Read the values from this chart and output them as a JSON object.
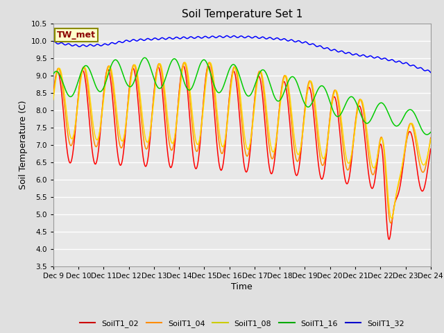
{
  "title": "Soil Temperature Set 1",
  "xlabel": "Time",
  "ylabel": "Soil Temperature (C)",
  "ylim": [
    3.5,
    10.5
  ],
  "yticks": [
    3.5,
    4.0,
    4.5,
    5.0,
    5.5,
    6.0,
    6.5,
    7.0,
    7.5,
    8.0,
    8.5,
    9.0,
    9.5,
    10.0,
    10.5
  ],
  "xlim": [
    0,
    15
  ],
  "xtick_labels": [
    "Dec 9",
    "Dec 10",
    "Dec 11",
    "Dec 12",
    "Dec 13",
    "Dec 14",
    "Dec 15",
    "Dec 16",
    "Dec 17",
    "Dec 18",
    "Dec 19",
    "Dec 20",
    "Dec 21",
    "Dec 22",
    "Dec 23",
    "Dec 24"
  ],
  "xtick_positions": [
    0,
    1,
    2,
    3,
    4,
    5,
    6,
    7,
    8,
    9,
    10,
    11,
    12,
    13,
    14,
    15
  ],
  "annotation_text": "TW_met",
  "annotation_text_color": "#8B0000",
  "annotation_bg_color": "#FFFFCC",
  "annotation_border_color": "#8B8B00",
  "series_colors": {
    "SoilT1_02": "#FF0000",
    "SoilT1_04": "#FF8C00",
    "SoilT1_08": "#FFD700",
    "SoilT1_16": "#00CC00",
    "SoilT1_32": "#0000FF"
  },
  "legend_colors": {
    "SoilT1_02": "#CC0000",
    "SoilT1_04": "#FF8C00",
    "SoilT1_08": "#CCCC00",
    "SoilT1_16": "#00AA00",
    "SoilT1_32": "#0000CC"
  },
  "bg_color": "#E8E8E8",
  "grid_color": "#FFFFFF",
  "title_fontsize": 11,
  "axis_label_fontsize": 9,
  "tick_fontsize": 7.5
}
